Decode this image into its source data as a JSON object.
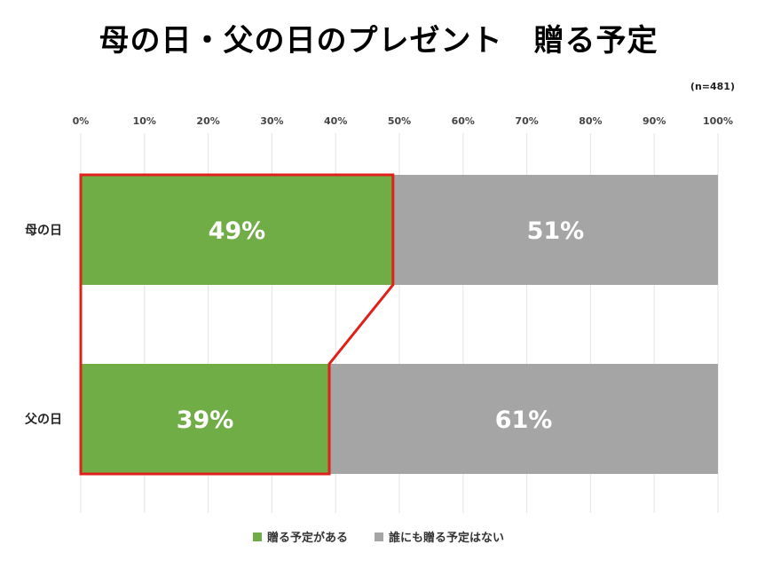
{
  "chart_data": {
    "type": "bar",
    "orientation": "horizontal",
    "stacked": true,
    "title": "母の日・父の日のプレゼント　贈る予定",
    "note": "(n=481)",
    "categories": [
      "母の日",
      "父の日"
    ],
    "series": [
      {
        "name": "贈る予定がある",
        "values": [
          49,
          39
        ],
        "labels": [
          "49%",
          "39%"
        ],
        "color": "#70ad47"
      },
      {
        "name": "誰にも贈る予定はない",
        "values": [
          51,
          61
        ],
        "labels": [
          "51%",
          "61%"
        ],
        "color": "#a5a5a5"
      }
    ],
    "xlim": [
      0,
      100
    ],
    "xticks": [
      "0%",
      "10%",
      "20%",
      "30%",
      "40%",
      "50%",
      "60%",
      "70%",
      "80%",
      "90%",
      "100%"
    ],
    "grid": true,
    "legend_position": "bottom",
    "highlight": {
      "series": "贈る予定がある",
      "outline_color": "#e0201a"
    }
  }
}
